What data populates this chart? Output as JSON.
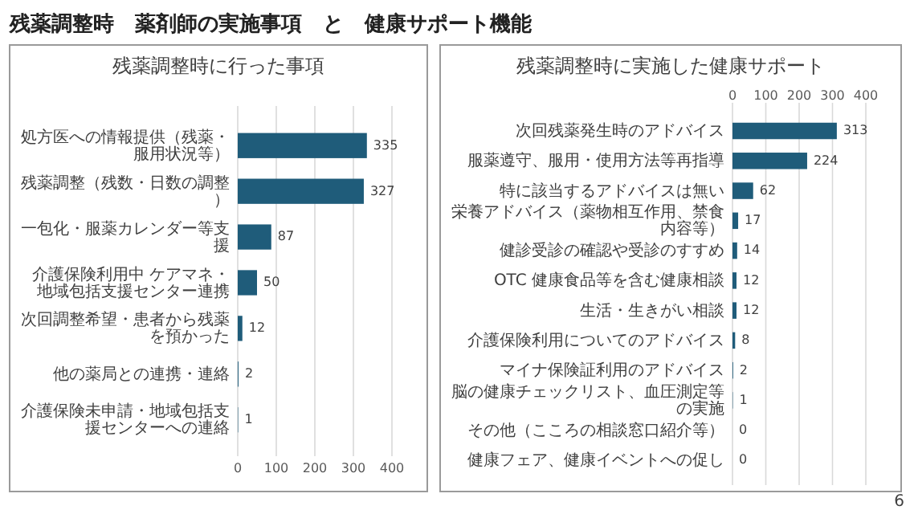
{
  "chart_data": [
    {
      "type": "bar",
      "orientation": "horizontal",
      "title": "残薬調整時に行った事項",
      "annotations": [
        "残薬調整時　薬剤師の実施事項　と　健康サポート機能",
        "6"
      ],
      "categories": [
        "処方医への情報提供（残薬・服用状況等）",
        "残薬調整（残数・日数の調整）",
        "一包化・服薬カレンダー等支援",
        "介護保険利用中 ケアマネ・地域包括支援センター連携",
        "次回調整希望・患者から残薬を預かった",
        "他の薬局との連携・連絡",
        "介護保険未申請・地域包括支援センターへの連絡"
      ],
      "values": [
        335,
        327,
        87,
        50,
        12,
        2,
        1
      ],
      "color": "#1f5c7a",
      "xlim": [
        0,
        400
      ],
      "xticks": [
        0,
        100,
        200,
        300,
        400
      ],
      "grid": "x",
      "data_labels": true
    },
    {
      "type": "bar",
      "orientation": "horizontal",
      "title": "残薬調整時に実施した健康サポート",
      "categories": [
        "次回残薬発生時のアドバイス",
        "服薬遵守、服用・使用方法等再指導",
        "特に該当するアドバイスは無い",
        "栄養アドバイス（薬物相互作用、禁食内容等）",
        "健診受診の確認や受診のすすめ",
        "OTC 健康食品等を含む健康相談",
        "生活・生きがい相談",
        "介護保険利用についてのアドバイス",
        "マイナ保険証利用のアドバイス",
        "脳の健康チェックリスト、血圧測定等の実施",
        "その他（こころの相談窓口紹介等）",
        "健康フェア、健康イベントへの促し"
      ],
      "values": [
        313,
        224,
        62,
        17,
        14,
        12,
        12,
        8,
        2,
        1,
        0,
        0
      ],
      "color": "#1f5c7a",
      "x2lim": [
        0,
        400
      ],
      "x2ticks": [
        0,
        100,
        200,
        300,
        400
      ],
      "grid": "x",
      "data_labels": true
    }
  ]
}
